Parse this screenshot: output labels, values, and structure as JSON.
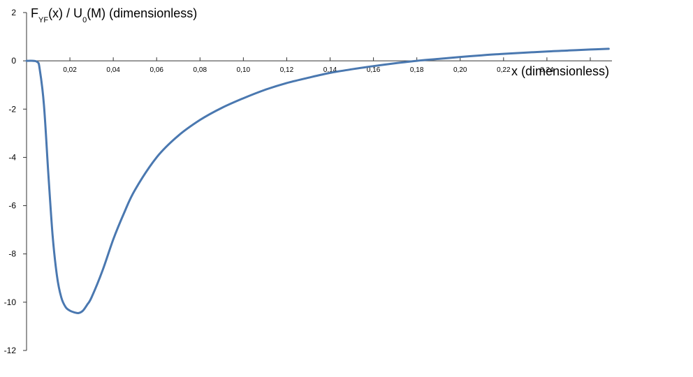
{
  "chart_data": {
    "type": "line",
    "ylabel": {
      "parts": [
        {
          "text": "F",
          "sub": false
        },
        {
          "text": "YF",
          "sub": true
        },
        {
          "text": "(x) / U",
          "sub": false
        },
        {
          "text": "0",
          "sub": true
        },
        {
          "text": "(M)  (dimensionless)",
          "sub": false
        }
      ]
    },
    "xlabel": "x (dimensionless)",
    "x_ticks": [
      "0,02",
      "0,04",
      "0,06",
      "0,08",
      "0,10",
      "0,12",
      "0,14",
      "0,16",
      "0,18",
      "0,20",
      "0,22",
      "0,24"
    ],
    "x_tick_values": [
      0.02,
      0.04,
      0.06,
      0.08,
      0.1,
      0.12,
      0.14,
      0.16,
      0.18,
      0.2,
      0.22,
      0.24
    ],
    "y_ticks": [
      "2",
      "0",
      "-2",
      "-4",
      "-6",
      "-8",
      "-10",
      "-12"
    ],
    "y_tick_values": [
      2,
      0,
      -2,
      -4,
      -6,
      -8,
      -10,
      -12
    ],
    "xlim": [
      0,
      0.27
    ],
    "ylim": [
      -12,
      2
    ],
    "grid": false,
    "legend": "none",
    "series": [
      {
        "color": "#4a78b0",
        "x": [
          0,
          0.003,
          0.005,
          0.006,
          0.008,
          0.01,
          0.012,
          0.014,
          0.016,
          0.018,
          0.02,
          0.022,
          0.024,
          0.026,
          0.028,
          0.03,
          0.035,
          0.04,
          0.045,
          0.05,
          0.06,
          0.07,
          0.08,
          0.09,
          0.1,
          0.11,
          0.12,
          0.13,
          0.14,
          0.15,
          0.16,
          0.17,
          0.18,
          0.19,
          0.2,
          0.21,
          0.22,
          0.23,
          0.24,
          0.25,
          0.26,
          0.2685
        ],
        "y": [
          0,
          0,
          -0.05,
          -0.3,
          -1.8,
          -4.6,
          -7.2,
          -8.9,
          -9.8,
          -10.2,
          -10.35,
          -10.42,
          -10.45,
          -10.35,
          -10.1,
          -9.8,
          -8.7,
          -7.4,
          -6.3,
          -5.35,
          -4.0,
          -3.1,
          -2.45,
          -1.95,
          -1.55,
          -1.2,
          -0.92,
          -0.7,
          -0.5,
          -0.35,
          -0.22,
          -0.1,
          0,
          0.08,
          0.16,
          0.23,
          0.29,
          0.34,
          0.39,
          0.43,
          0.47,
          0.5
        ]
      }
    ]
  }
}
